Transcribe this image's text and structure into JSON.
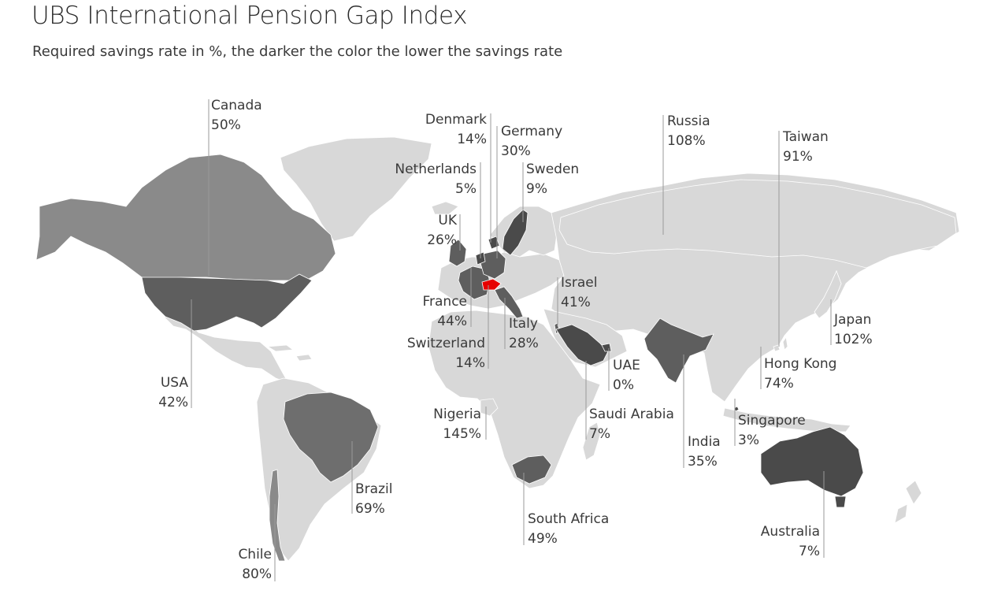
{
  "title": "UBS International Pension Gap Index",
  "subtitle": "Required savings rate in %, the darker the color the lower the savings rate",
  "colors": {
    "land": "#d8d8d8",
    "border": "#ffffff",
    "leader": "#9a9a9a",
    "switzerland": "#e60000",
    "shade_dark": "#4a4a4a",
    "shade_mid_dark": "#5e5e5e",
    "shade_mid": "#6e6e6e",
    "shade_light": "#8a8a8a"
  },
  "countries": [
    {
      "id": "canada",
      "name": "Canada",
      "value": "50%"
    },
    {
      "id": "usa",
      "name": "USA",
      "value": "42%"
    },
    {
      "id": "brazil",
      "name": "Brazil",
      "value": "69%"
    },
    {
      "id": "chile",
      "name": "Chile",
      "value": "80%"
    },
    {
      "id": "denmark",
      "name": "Denmark",
      "value": "14%"
    },
    {
      "id": "germany",
      "name": "Germany",
      "value": "30%"
    },
    {
      "id": "netherlands",
      "name": "Netherlands",
      "value": "5%"
    },
    {
      "id": "sweden",
      "name": "Sweden",
      "value": "9%"
    },
    {
      "id": "uk",
      "name": "UK",
      "value": "26%"
    },
    {
      "id": "france",
      "name": "France",
      "value": "44%"
    },
    {
      "id": "switzerland",
      "name": "Switzerland",
      "value": "14%"
    },
    {
      "id": "italy",
      "name": "Italy",
      "value": "28%"
    },
    {
      "id": "israel",
      "name": "Israel",
      "value": "41%"
    },
    {
      "id": "nigeria",
      "name": "Nigeria",
      "value": "145%"
    },
    {
      "id": "uae",
      "name": "UAE",
      "value": "0%"
    },
    {
      "id": "saudi-arabia",
      "name": "Saudi Arabia",
      "value": "7%"
    },
    {
      "id": "south-africa",
      "name": "South Africa",
      "value": "49%"
    },
    {
      "id": "russia",
      "name": "Russia",
      "value": "108%"
    },
    {
      "id": "taiwan",
      "name": "Taiwan",
      "value": "91%"
    },
    {
      "id": "japan",
      "name": "Japan",
      "value": "102%"
    },
    {
      "id": "hong-kong",
      "name": "Hong Kong",
      "value": "74%"
    },
    {
      "id": "india",
      "name": "India",
      "value": "35%"
    },
    {
      "id": "singapore",
      "name": "Singapore",
      "value": "3%"
    },
    {
      "id": "australia",
      "name": "Australia",
      "value": "7%"
    }
  ]
}
